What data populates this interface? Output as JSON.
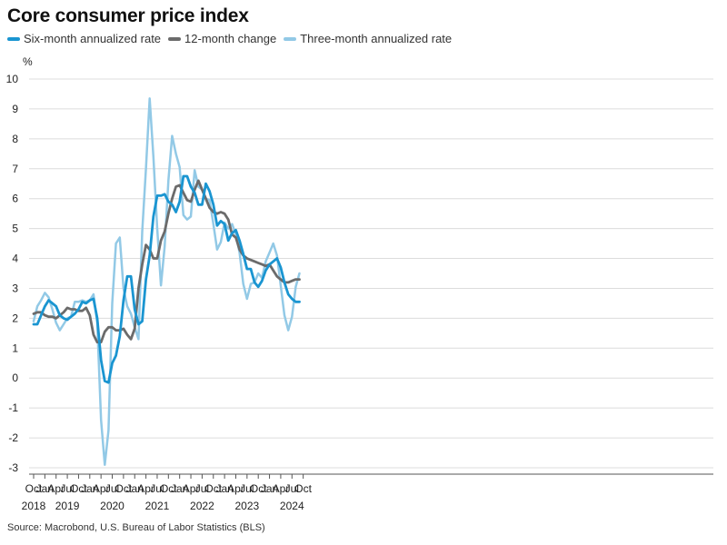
{
  "title": "Core consumer price index",
  "source": "Source: Macrobond, U.S. Bureau of Labor Statistics (BLS)",
  "chart_data": {
    "type": "line",
    "title": "Core consumer price index",
    "ylabel": "%",
    "xlabel": "",
    "ylim": [
      -3,
      10
    ],
    "yticks": [
      -3,
      -2,
      -1,
      0,
      1,
      2,
      3,
      4,
      5,
      6,
      7,
      8,
      9,
      10
    ],
    "grid": true,
    "legend_position": "top-left",
    "x_start": "2018-10",
    "x_ticks": [
      {
        "label": "Oct",
        "year": "2018",
        "i": 0
      },
      {
        "label": "Jan",
        "year": "",
        "i": 3
      },
      {
        "label": "Apr",
        "year": "",
        "i": 6
      },
      {
        "label": "Jul",
        "year": "2019",
        "i": 9
      },
      {
        "label": "Oct",
        "year": "",
        "i": 12
      },
      {
        "label": "Jan",
        "year": "",
        "i": 15
      },
      {
        "label": "Apr",
        "year": "",
        "i": 18
      },
      {
        "label": "Jul",
        "year": "2020",
        "i": 21
      },
      {
        "label": "Oct",
        "year": "",
        "i": 24
      },
      {
        "label": "Jan",
        "year": "",
        "i": 27
      },
      {
        "label": "Apr",
        "year": "",
        "i": 30
      },
      {
        "label": "Jul",
        "year": "2021",
        "i": 33
      },
      {
        "label": "Oct",
        "year": "",
        "i": 36
      },
      {
        "label": "Jan",
        "year": "",
        "i": 39
      },
      {
        "label": "Apr",
        "year": "",
        "i": 42
      },
      {
        "label": "Jul",
        "year": "2022",
        "i": 45
      },
      {
        "label": "Oct",
        "year": "",
        "i": 48
      },
      {
        "label": "Jan",
        "year": "",
        "i": 51
      },
      {
        "label": "Apr",
        "year": "",
        "i": 54
      },
      {
        "label": "Jul",
        "year": "2023",
        "i": 57
      },
      {
        "label": "Oct",
        "year": "",
        "i": 60
      },
      {
        "label": "Jan",
        "year": "",
        "i": 63
      },
      {
        "label": "Apr",
        "year": "",
        "i": 66
      },
      {
        "label": "Jul",
        "year": "2024",
        "i": 69
      },
      {
        "label": "Oct",
        "year": "",
        "i": 72
      }
    ],
    "series": [
      {
        "name": "Six-month annualized rate",
        "color": "#1a95d1",
        "width": 2.8,
        "values": [
          1.8,
          1.8,
          2.1,
          2.4,
          2.6,
          2.5,
          2.4,
          2.1,
          2.0,
          1.95,
          2.05,
          2.15,
          2.3,
          2.55,
          2.5,
          2.6,
          2.65,
          2.0,
          0.6,
          -0.1,
          -0.15,
          0.5,
          0.75,
          1.4,
          2.6,
          3.4,
          3.4,
          2.3,
          1.8,
          1.9,
          3.3,
          4.1,
          5.4,
          6.1,
          6.1,
          6.15,
          5.9,
          5.8,
          5.55,
          5.9,
          6.75,
          6.75,
          6.4,
          6.2,
          5.8,
          5.8,
          6.5,
          6.25,
          5.8,
          5.1,
          5.25,
          5.15,
          4.6,
          4.85,
          4.95,
          4.6,
          4.15,
          3.65,
          3.65,
          3.2,
          3.05,
          3.25,
          3.6,
          3.8,
          3.9,
          4.0,
          3.7,
          3.2,
          2.8,
          2.65,
          2.55,
          2.55
        ]
      },
      {
        "name": "12-month change",
        "color": "#6b6b6b",
        "width": 2.8,
        "values": [
          2.15,
          2.2,
          2.2,
          2.1,
          2.05,
          2.05,
          2.0,
          2.1,
          2.2,
          2.35,
          2.3,
          2.3,
          2.25,
          2.25,
          2.35,
          2.1,
          1.45,
          1.2,
          1.2,
          1.55,
          1.7,
          1.7,
          1.6,
          1.6,
          1.65,
          1.45,
          1.3,
          1.65,
          3.0,
          3.8,
          4.45,
          4.3,
          4.0,
          4.0,
          4.6,
          4.9,
          5.5,
          6.0,
          6.4,
          6.45,
          6.2,
          5.95,
          5.9,
          6.3,
          6.6,
          6.3,
          6.0,
          5.7,
          5.55,
          5.5,
          5.55,
          5.5,
          5.3,
          4.8,
          4.7,
          4.3,
          4.1,
          4.0,
          3.95,
          3.9,
          3.85,
          3.8,
          3.75,
          3.8,
          3.6,
          3.4,
          3.3,
          3.2,
          3.2,
          3.25,
          3.3,
          3.3
        ]
      },
      {
        "name": "Three-month annualized rate",
        "color": "#92c9e6",
        "width": 2.5,
        "values": [
          1.9,
          2.4,
          2.6,
          2.85,
          2.7,
          2.3,
          1.85,
          1.6,
          1.8,
          2.0,
          2.05,
          2.55,
          2.55,
          2.6,
          2.55,
          2.6,
          2.8,
          1.85,
          -1.4,
          -2.9,
          -1.75,
          2.5,
          4.5,
          4.7,
          3.0,
          2.4,
          2.15,
          1.7,
          1.3,
          4.9,
          7.0,
          9.35,
          7.4,
          5.0,
          3.1,
          4.4,
          6.6,
          8.1,
          7.5,
          7.05,
          5.45,
          5.3,
          5.4,
          6.95,
          6.4,
          6.3,
          6.0,
          5.95,
          5.15,
          4.3,
          4.55,
          5.2,
          5.0,
          5.15,
          4.8,
          4.2,
          3.15,
          2.65,
          3.15,
          3.2,
          3.5,
          3.35,
          3.9,
          4.2,
          4.5,
          4.1,
          3.1,
          2.1,
          1.6,
          2.05,
          3.05,
          3.5
        ]
      }
    ]
  }
}
